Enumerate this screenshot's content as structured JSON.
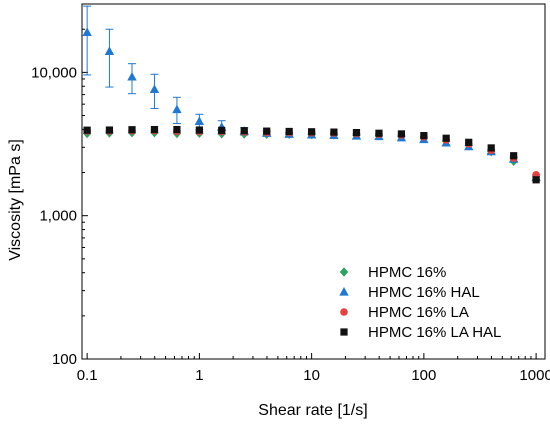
{
  "chart_data": {
    "type": "scatter",
    "xscale": "log",
    "yscale": "log",
    "xlim": [
      0.09,
      1200
    ],
    "ylim": [
      100,
      30000
    ],
    "xlabel": "Shear rate [1/s]",
    "ylabel": "Viscosity [mPa s]",
    "grid": false,
    "legend_position": "bottom-right",
    "x_ticks": [
      {
        "value": 0.1,
        "label": "0.1"
      },
      {
        "value": 1,
        "label": "1"
      },
      {
        "value": 10,
        "label": "10"
      },
      {
        "value": 100,
        "label": "100"
      },
      {
        "value": 1000,
        "label": "1000"
      }
    ],
    "y_ticks": [
      {
        "value": 100,
        "label": "100"
      },
      {
        "value": 1000,
        "label": "1,000"
      },
      {
        "value": 10000,
        "label": "10,000"
      }
    ],
    "x": [
      0.1,
      0.158,
      0.251,
      0.398,
      0.631,
      1,
      1.58,
      2.51,
      3.98,
      6.31,
      10,
      15.8,
      25.1,
      39.8,
      63.1,
      100,
      158,
      251,
      398,
      631,
      1000
    ],
    "series": [
      {
        "name": "HPMC 16%",
        "color": "#2ca25f",
        "marker": "diamond",
        "values": [
          3750,
          3780,
          3800,
          3800,
          3750,
          3760,
          3730,
          3720,
          3700,
          3700,
          3690,
          3670,
          3650,
          3620,
          3580,
          3480,
          3320,
          3100,
          2800,
          2400,
          1870
        ]
      },
      {
        "name": "HPMC 16% HAL",
        "color": "#1f78d1",
        "marker": "triangle",
        "values": [
          19000,
          14000,
          9300,
          7600,
          5500,
          4550,
          4150,
          3880,
          3760,
          3700,
          3660,
          3630,
          3600,
          3570,
          3500,
          3400,
          3220,
          3030,
          2800,
          2480,
          1850
        ],
        "error_upper": [
          29000,
          20000,
          11500,
          9700,
          6700,
          5100,
          4600,
          4100,
          3900,
          3800,
          3720,
          3680,
          3650,
          3620,
          3560,
          3460,
          3290,
          3100,
          2880,
          2570,
          1920
        ],
        "error_lower": [
          9600,
          7900,
          7100,
          5600,
          4400,
          4000,
          3700,
          3650,
          3620,
          3600,
          3600,
          3580,
          3550,
          3520,
          3440,
          3340,
          3150,
          2960,
          2720,
          2390,
          1780
        ]
      },
      {
        "name": "HPMC 16% LA",
        "color": "#e8413d",
        "marker": "circle",
        "values": [
          3900,
          3900,
          3920,
          3930,
          3880,
          3870,
          3860,
          3840,
          3810,
          3800,
          3790,
          3770,
          3740,
          3700,
          3650,
          3550,
          3380,
          3170,
          2860,
          2520,
          1930
        ]
      },
      {
        "name": "HPMC 16% LA HAL",
        "color": "#111111",
        "marker": "square",
        "values": [
          3950,
          3960,
          3980,
          3990,
          3990,
          3960,
          3940,
          3920,
          3890,
          3870,
          3850,
          3830,
          3800,
          3760,
          3720,
          3620,
          3470,
          3250,
          2970,
          2620,
          1780
        ]
      }
    ]
  }
}
